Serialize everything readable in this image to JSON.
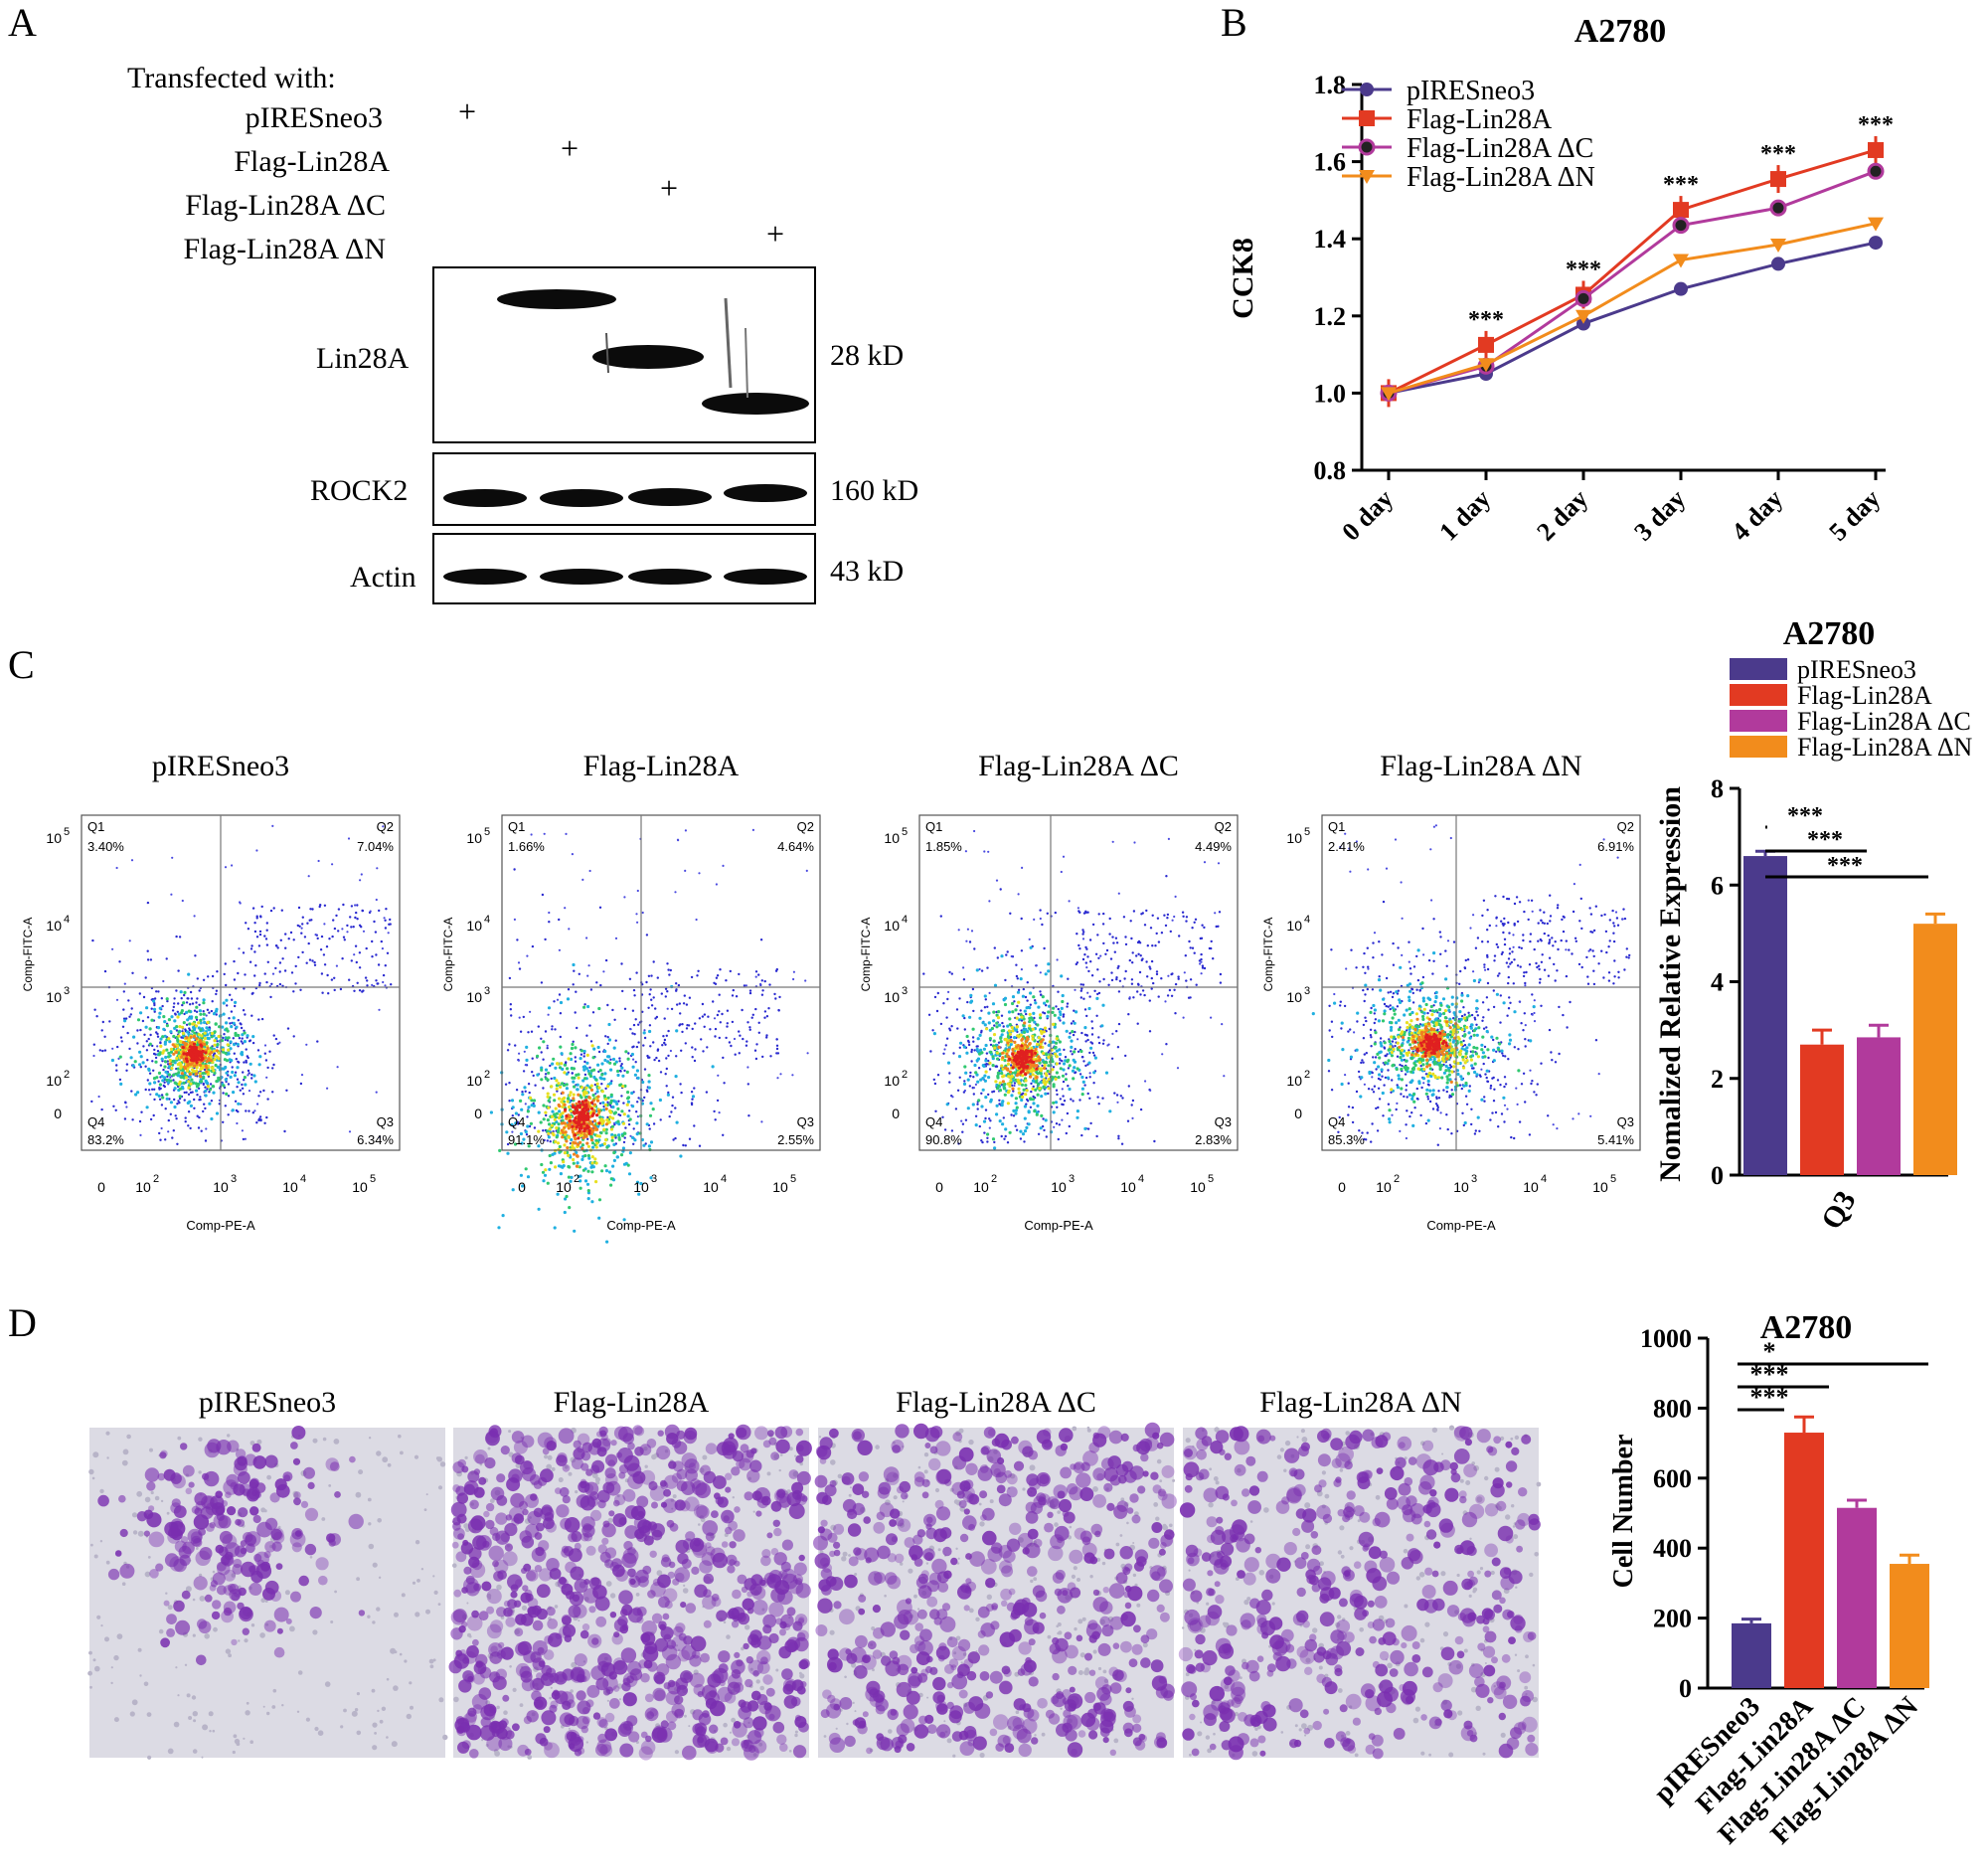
{
  "colors": {
    "p1": "#4b3a8c",
    "p2": "#e23a22",
    "p3": "#b13a9c",
    "p4": "#f28c1c",
    "crystal": "#7a2fb0"
  },
  "panel_letters": {
    "a": "A",
    "b": "B",
    "c": "C",
    "d": "D"
  },
  "western": {
    "transfected_title": "Transfected with:",
    "rows": [
      "pIRESneo3",
      "Flag-Lin28A",
      "Flag-Lin28A ΔC",
      "Flag-Lin28A ΔN"
    ],
    "plus": "+",
    "blots": [
      {
        "label": "Lin28A",
        "size": "28 kD"
      },
      {
        "label": "ROCK2",
        "size": "160 kD"
      },
      {
        "label": "Actin",
        "size": "43 kD"
      }
    ]
  },
  "flow": {
    "titles": [
      "pIRESneo3",
      "Flag-Lin28A",
      "Flag-Lin28A ΔC",
      "Flag-Lin28A ΔN"
    ],
    "xlabel": "Comp-PE-A",
    "ylabel": "Comp-FITC-A",
    "quad_names": [
      "Q1",
      "Q2",
      "Q3",
      "Q4"
    ],
    "quadrants": [
      {
        "q1": "3.40%",
        "q2": "7.04%",
        "q3": "6.34%",
        "q4": "83.2%"
      },
      {
        "q1": "1.66%",
        "q2": "4.64%",
        "q3": "2.55%",
        "q4": "91.1%"
      },
      {
        "q1": "1.85%",
        "q2": "4.49%",
        "q3": "2.83%",
        "q4": "90.8%"
      },
      {
        "q1": "2.41%",
        "q2": "6.91%",
        "q3": "5.41%",
        "q4": "85.3%"
      }
    ],
    "ticks": {
      "zero": "0",
      "base": "10",
      "exps": [
        "2",
        "3",
        "4",
        "5"
      ]
    }
  },
  "crystal": {
    "titles": [
      "pIRESneo3",
      "Flag-Lin28A",
      "Flag-Lin28A ΔC",
      "Flag-Lin28A ΔN"
    ]
  },
  "chart_data": [
    {
      "id": "cck8",
      "type": "line",
      "title": "A2780",
      "ylabel": "CCK8",
      "xlabel": "",
      "categories": [
        "0 day",
        "1 day",
        "2 day",
        "3 day",
        "4 day",
        "5 day"
      ],
      "ylim": [
        0.8,
        1.8
      ],
      "yticks": [
        "0.8",
        "1.0",
        "1.2",
        "1.4",
        "1.6",
        "1.8"
      ],
      "series": [
        {
          "name": "pIRESneo3",
          "values": [
            1.0,
            1.05,
            1.18,
            1.27,
            1.335,
            1.39
          ]
        },
        {
          "name": "Flag-Lin28A",
          "values": [
            1.0,
            1.125,
            1.255,
            1.475,
            1.555,
            1.63
          ]
        },
        {
          "name": "Flag-Lin28A ΔC",
          "values": [
            1.0,
            1.07,
            1.245,
            1.435,
            1.48,
            1.575
          ]
        },
        {
          "name": "Flag-Lin28A ΔN",
          "values": [
            1.0,
            1.075,
            1.2,
            1.345,
            1.385,
            1.44
          ]
        }
      ],
      "annotations": [
        "***",
        "***",
        "***",
        "***",
        "***"
      ],
      "legend": "top-left"
    },
    {
      "id": "q3",
      "type": "bar",
      "title": "A2780",
      "ylabel": "Nomalized Relative Expression",
      "xlabel": "Q3",
      "categories": [
        "pIRESneo3",
        "Flag-Lin28A",
        "Flag-Lin28A ΔC",
        "Flag-Lin28A ΔN"
      ],
      "values": [
        6.6,
        2.7,
        2.85,
        5.2
      ],
      "errors": [
        0.1,
        0.3,
        0.25,
        0.2
      ],
      "ylim": [
        0,
        8
      ],
      "yticks": [
        "0",
        "2",
        "4",
        "6",
        "8"
      ],
      "significance": [
        "***",
        "***",
        "***"
      ],
      "legend": "top"
    },
    {
      "id": "cells",
      "type": "bar",
      "title": "A2780",
      "ylabel": "Cell Number",
      "xlabel": "",
      "categories": [
        "pIRESneo3",
        "Flag-Lin28A",
        "Flag-Lin28A ΔC",
        "Flag-Lin28A ΔN"
      ],
      "values": [
        185,
        730,
        515,
        355
      ],
      "errors": [
        12,
        45,
        22,
        25
      ],
      "ylim": [
        0,
        1000
      ],
      "yticks": [
        "0",
        "200",
        "400",
        "600",
        "800",
        "1000"
      ],
      "significance": [
        "*",
        "***",
        "***"
      ]
    }
  ]
}
